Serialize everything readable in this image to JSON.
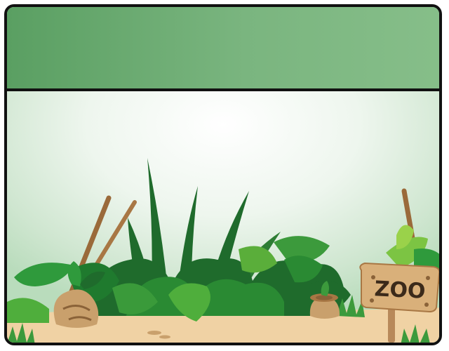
{
  "header": {
    "title": ""
  },
  "sign": {
    "text": "ZOO"
  },
  "colors": {
    "header_green": "#6faa74",
    "frame_border": "#111111",
    "ground_sand": "#f0d2a4",
    "leaf_dark": "#1f6b2c",
    "leaf_mid": "#3c9a3c",
    "leaf_light": "#7cc443",
    "sign_wood": "#d9b07a",
    "stick_brown": "#9a6a3a"
  },
  "icons": [
    "jungle-plants",
    "wooden-zoo-sign",
    "tree-stump",
    "bamboo-sticks"
  ]
}
